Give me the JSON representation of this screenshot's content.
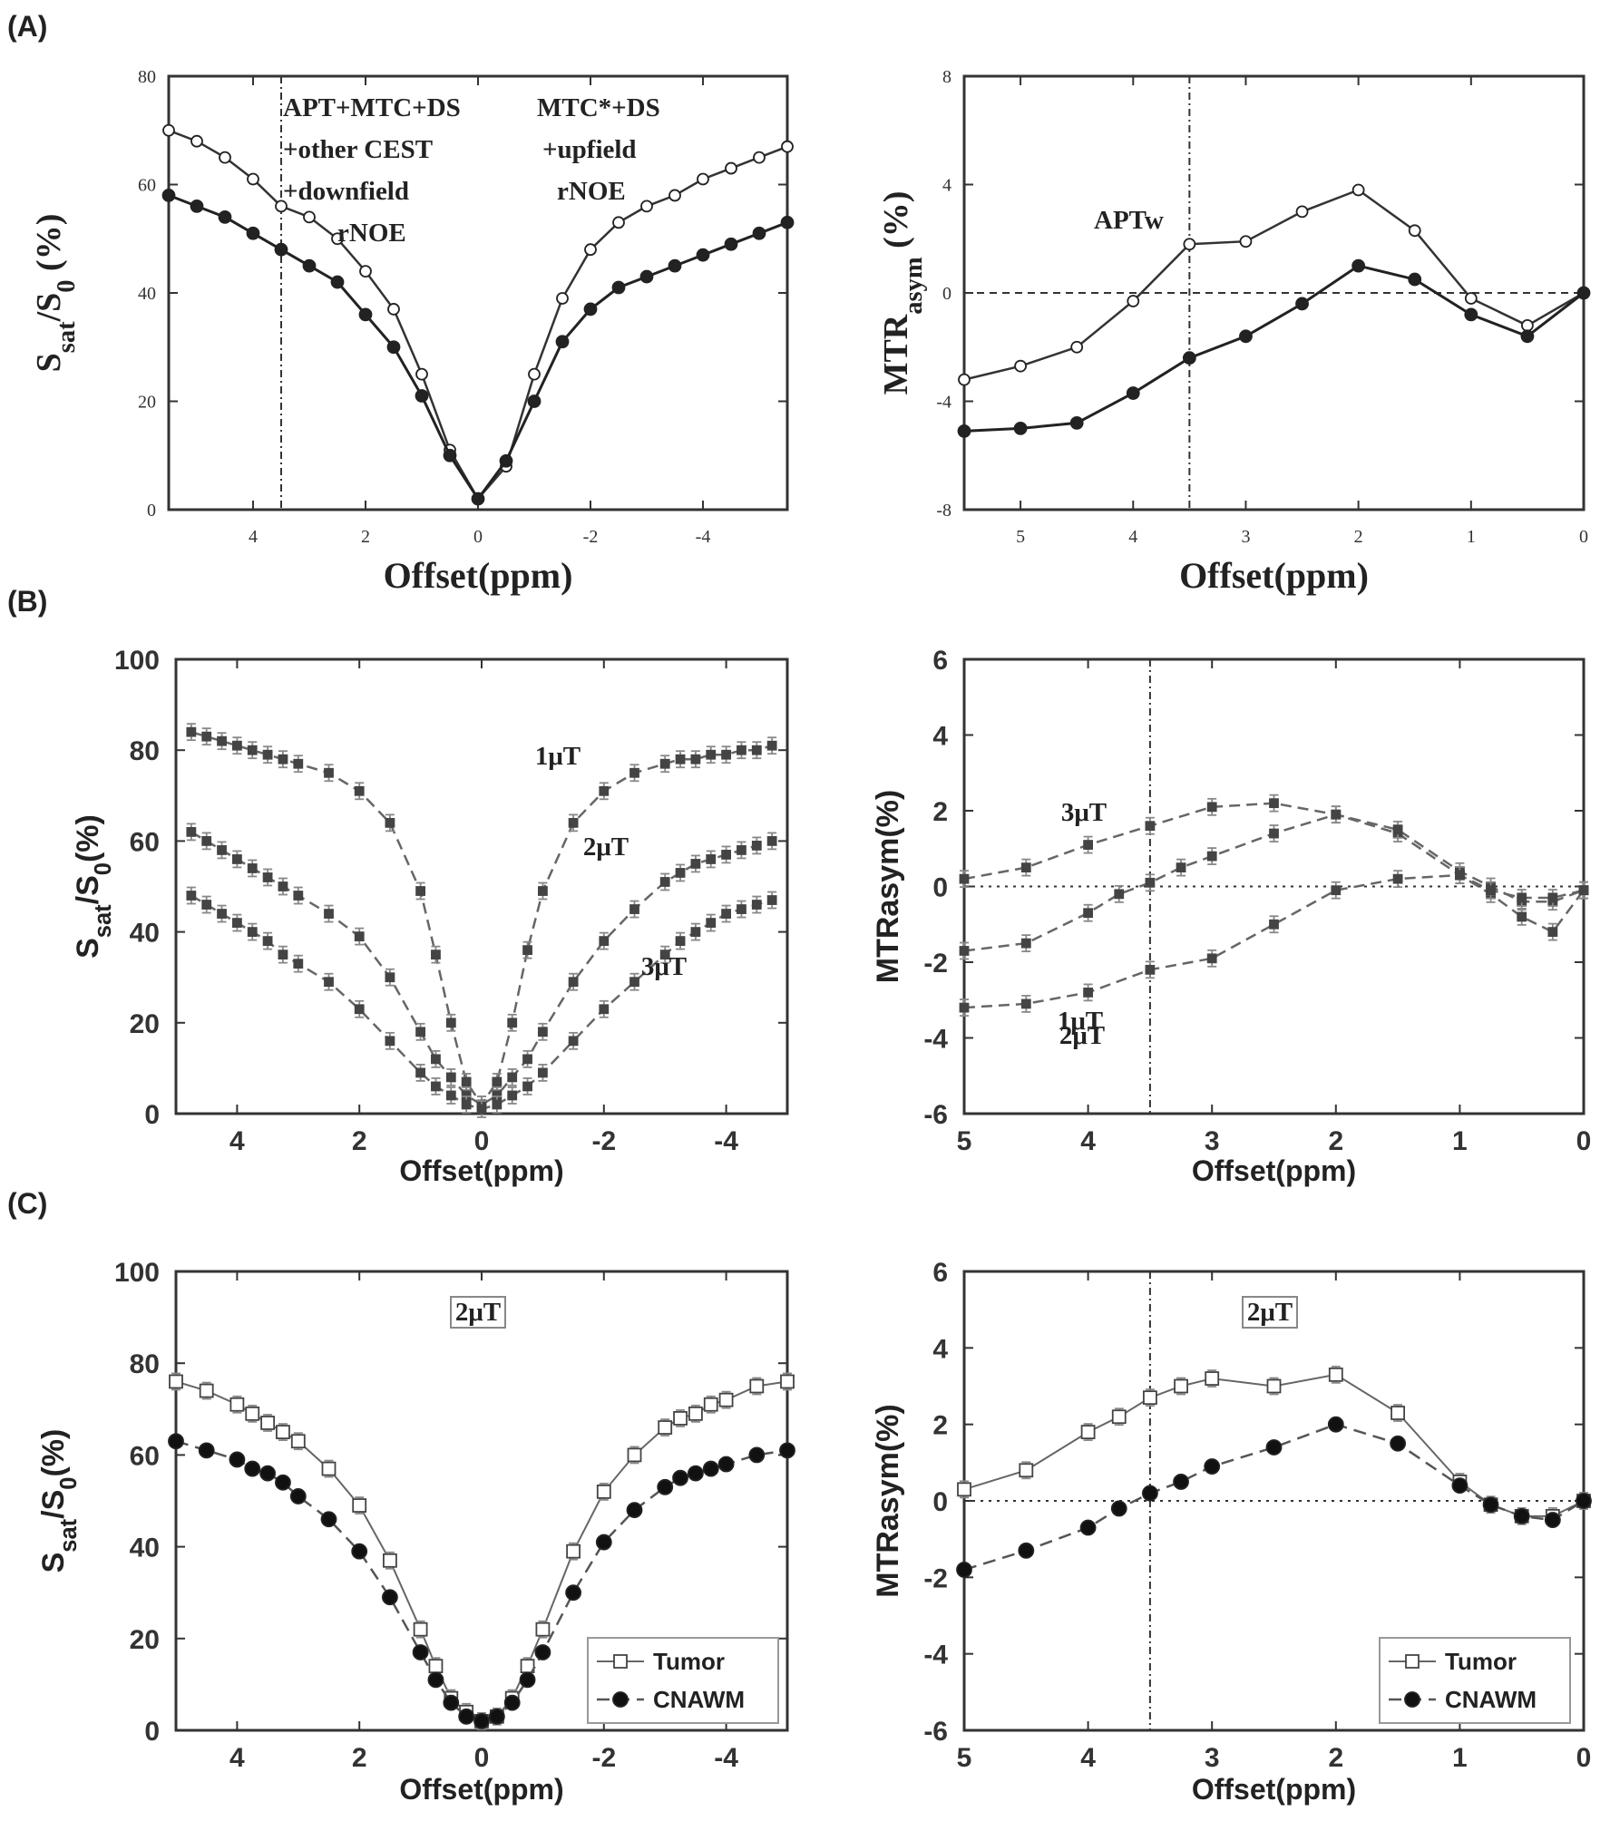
{
  "figure": {
    "panel_labels": [
      "(A)",
      "(B)",
      "(C)"
    ]
  },
  "chart_data": [
    {
      "id": "A-left",
      "type": "line",
      "xlabel": "Offset(ppm)",
      "ylabel": "S_sat/S_0 (%)",
      "xlim": [
        5.5,
        -5.5
      ],
      "ylim": [
        0,
        80
      ],
      "xticks": [
        4,
        2,
        0,
        -2,
        -4
      ],
      "yticks": [
        0,
        20,
        40,
        60,
        80
      ],
      "grid": false,
      "vline": 3.5,
      "annotations": [
        {
          "lines": [
            "APT+MTC+DS",
            "+other CEST",
            "+downfield",
            "rNOE"
          ],
          "x": 3.5,
          "y": 77
        },
        {
          "lines": [
            "MTC*+DS",
            "+upfield",
            "rNOE"
          ],
          "x": -1.2,
          "y": 77
        }
      ],
      "series": [
        {
          "marker": "open-circle",
          "x": [
            5.5,
            5.0,
            4.5,
            4.0,
            3.5,
            3.0,
            2.5,
            2.0,
            1.5,
            1.0,
            0.5,
            0.0,
            -0.5,
            -1.0,
            -1.5,
            -2.0,
            -2.5,
            -3.0,
            -3.5,
            -4.0,
            -4.5,
            -5.0,
            -5.5
          ],
          "values": [
            70,
            68,
            65,
            61,
            56,
            54,
            50,
            44,
            37,
            25,
            11,
            2,
            8,
            25,
            39,
            48,
            53,
            56,
            58,
            61,
            63,
            65,
            67
          ]
        },
        {
          "marker": "filled-circle",
          "x": [
            5.5,
            5.0,
            4.5,
            4.0,
            3.5,
            3.0,
            2.5,
            2.0,
            1.5,
            1.0,
            0.5,
            0.0,
            -0.5,
            -1.0,
            -1.5,
            -2.0,
            -2.5,
            -3.0,
            -3.5,
            -4.0,
            -4.5,
            -5.0,
            -5.5
          ],
          "values": [
            58,
            56,
            54,
            51,
            48,
            45,
            42,
            36,
            30,
            21,
            10,
            2,
            9,
            20,
            31,
            37,
            41,
            43,
            45,
            47,
            49,
            51,
            53
          ]
        }
      ]
    },
    {
      "id": "A-right",
      "type": "line",
      "xlabel": "Offset(ppm)",
      "ylabel": "MTR_asym (%)",
      "xlim": [
        5.5,
        0
      ],
      "ylim": [
        -8,
        8
      ],
      "xticks": [
        5,
        4,
        3,
        2,
        1,
        0
      ],
      "yticks": [
        -8,
        -4,
        0,
        4,
        8
      ],
      "grid": false,
      "vline": 3.5,
      "hline": 0,
      "annotations": [
        {
          "lines": [
            "APTw"
          ],
          "x": 4.0,
          "y": 2.4
        }
      ],
      "series": [
        {
          "marker": "open-circle",
          "x": [
            5.5,
            5.0,
            4.5,
            4.0,
            3.5,
            3.0,
            2.5,
            2.0,
            1.5,
            1.0,
            0.5,
            0.0
          ],
          "values": [
            -3.2,
            -2.7,
            -2.0,
            -0.3,
            1.8,
            1.9,
            3.0,
            3.8,
            2.3,
            -0.2,
            -1.2,
            0.0
          ]
        },
        {
          "marker": "filled-circle",
          "x": [
            5.5,
            5.0,
            4.5,
            4.0,
            3.5,
            3.0,
            2.5,
            2.0,
            1.5,
            1.0,
            0.5,
            0.0
          ],
          "values": [
            -5.1,
            -5.0,
            -4.8,
            -3.7,
            -2.4,
            -1.6,
            -0.4,
            1.0,
            0.5,
            -0.8,
            -1.6,
            0.0
          ]
        }
      ]
    },
    {
      "id": "B-left",
      "type": "line",
      "xlabel": "Offset(ppm)",
      "ylabel": "S_sat/S_0(%)",
      "xlim": [
        5,
        -5
      ],
      "ylim": [
        0,
        100
      ],
      "xticks": [
        4,
        2,
        0,
        -2,
        -4
      ],
      "yticks": [
        0,
        20,
        40,
        60,
        80,
        100
      ],
      "grid": false,
      "series": [
        {
          "name": "1μT",
          "x": [
            4.75,
            4.5,
            4.25,
            4.0,
            3.75,
            3.5,
            3.25,
            3.0,
            2.5,
            2.0,
            1.5,
            1.0,
            0.75,
            0.5,
            0.25,
            0.0,
            -0.25,
            -0.5,
            -0.75,
            -1.0,
            -1.5,
            -2.0,
            -2.5,
            -3.0,
            -3.25,
            -3.5,
            -3.75,
            -4.0,
            -4.25,
            -4.5,
            -4.75
          ],
          "values": [
            84,
            83,
            82,
            81,
            80,
            79,
            78,
            77,
            75,
            71,
            64,
            49,
            35,
            20,
            7,
            2,
            7,
            20,
            36,
            49,
            64,
            71,
            75,
            77,
            78,
            78,
            79,
            79,
            80,
            80,
            81
          ]
        },
        {
          "name": "2μT",
          "x": [
            4.75,
            4.5,
            4.25,
            4.0,
            3.75,
            3.5,
            3.25,
            3.0,
            2.5,
            2.0,
            1.5,
            1.0,
            0.75,
            0.5,
            0.25,
            0.0,
            -0.25,
            -0.5,
            -0.75,
            -1.0,
            -1.5,
            -2.0,
            -2.5,
            -3.0,
            -3.25,
            -3.5,
            -3.75,
            -4.0,
            -4.25,
            -4.5,
            -4.75
          ],
          "values": [
            62,
            60,
            58,
            56,
            54,
            52,
            50,
            48,
            44,
            39,
            30,
            18,
            12,
            8,
            4,
            2,
            4,
            8,
            12,
            18,
            29,
            38,
            45,
            51,
            53,
            55,
            56,
            57,
            58,
            59,
            60
          ]
        },
        {
          "name": "3μT",
          "x": [
            4.75,
            4.5,
            4.25,
            4.0,
            3.75,
            3.5,
            3.25,
            3.0,
            2.5,
            2.0,
            1.5,
            1.0,
            0.75,
            0.5,
            0.25,
            0.0,
            -0.25,
            -0.5,
            -0.75,
            -1.0,
            -1.5,
            -2.0,
            -2.5,
            -3.0,
            -3.25,
            -3.5,
            -3.75,
            -4.0,
            -4.25,
            -4.5,
            -4.75
          ],
          "values": [
            48,
            46,
            44,
            42,
            40,
            38,
            35,
            33,
            29,
            23,
            16,
            9,
            6,
            4,
            2,
            1,
            2,
            4,
            6,
            9,
            16,
            23,
            29,
            35,
            38,
            40,
            42,
            44,
            45,
            46,
            47
          ]
        }
      ]
    },
    {
      "id": "B-right",
      "type": "line",
      "xlabel": "Offset(ppm)",
      "ylabel": "MTRasym(%)",
      "xlim": [
        5,
        0
      ],
      "ylim": [
        -6,
        6
      ],
      "xticks": [
        5,
        4,
        3,
        2,
        1,
        0
      ],
      "yticks": [
        -6,
        -4,
        -2,
        0,
        2,
        4,
        6
      ],
      "grid": false,
      "vline": 3.5,
      "hline": 0,
      "series": [
        {
          "name": "3μT",
          "x": [
            5.0,
            4.5,
            4.0,
            3.5,
            3.0,
            2.5,
            2.0,
            1.5,
            1.0,
            0.75,
            0.5,
            0.25,
            0.0
          ],
          "values": [
            0.2,
            0.5,
            1.1,
            1.6,
            2.1,
            2.2,
            1.9,
            1.4,
            0.3,
            -0.2,
            -0.8,
            -1.2,
            -0.1
          ]
        },
        {
          "name": "2μT",
          "x": [
            5.0,
            4.5,
            4.0,
            3.75,
            3.5,
            3.25,
            3.0,
            2.5,
            2.0,
            1.5,
            1.0,
            0.75,
            0.5,
            0.25,
            0.0
          ],
          "values": [
            -1.7,
            -1.5,
            -0.7,
            -0.2,
            0.1,
            0.5,
            0.8,
            1.4,
            1.9,
            1.5,
            0.4,
            0.0,
            -0.4,
            -0.4,
            -0.1
          ]
        },
        {
          "name": "1μT",
          "x": [
            5.0,
            4.5,
            4.0,
            3.5,
            3.0,
            2.5,
            2.0,
            1.5,
            1.0,
            0.75,
            0.5,
            0.25,
            0.0
          ],
          "values": [
            -3.2,
            -3.1,
            -2.8,
            -2.2,
            -1.9,
            -1.0,
            -0.1,
            0.2,
            0.3,
            -0.1,
            -0.3,
            -0.3,
            -0.1
          ]
        }
      ]
    },
    {
      "id": "C-left",
      "type": "line",
      "xlabel": "Offset(ppm)",
      "ylabel": "S_sat/S_0(%)",
      "xlim": [
        5,
        -5
      ],
      "ylim": [
        0,
        100
      ],
      "xticks": [
        4,
        2,
        0,
        -2,
        -4
      ],
      "yticks": [
        0,
        20,
        40,
        60,
        80,
        100
      ],
      "grid": false,
      "annotations": [
        {
          "lines": [
            "2μT"
          ],
          "x": 0,
          "y": 91
        }
      ],
      "legend": "bottom-right",
      "series": [
        {
          "name": "Tumor",
          "x": [
            5.0,
            4.5,
            4.0,
            3.75,
            3.5,
            3.25,
            3.0,
            2.5,
            2.0,
            1.5,
            1.0,
            0.75,
            0.5,
            0.25,
            0.0,
            -0.25,
            -0.5,
            -0.75,
            -1.0,
            -1.5,
            -2.0,
            -2.5,
            -3.0,
            -3.25,
            -3.5,
            -3.75,
            -4.0,
            -4.5,
            -5.0
          ],
          "values": [
            76,
            74,
            71,
            69,
            67,
            65,
            63,
            57,
            49,
            37,
            22,
            14,
            7,
            4,
            2,
            3,
            7,
            14,
            22,
            39,
            52,
            60,
            66,
            68,
            69,
            71,
            72,
            75,
            76
          ]
        },
        {
          "name": "CNAWM",
          "x": [
            5.0,
            4.5,
            4.0,
            3.75,
            3.5,
            3.25,
            3.0,
            2.5,
            2.0,
            1.5,
            1.0,
            0.75,
            0.5,
            0.25,
            0.0,
            -0.25,
            -0.5,
            -0.75,
            -1.0,
            -1.5,
            -2.0,
            -2.5,
            -3.0,
            -3.25,
            -3.5,
            -3.75,
            -4.0,
            -4.5,
            -5.0
          ],
          "values": [
            63,
            61,
            59,
            57,
            56,
            54,
            51,
            46,
            39,
            29,
            17,
            11,
            6,
            3,
            2,
            3,
            6,
            11,
            17,
            30,
            41,
            48,
            53,
            55,
            56,
            57,
            58,
            60,
            61
          ]
        }
      ]
    },
    {
      "id": "C-right",
      "type": "line",
      "xlabel": "Offset(ppm)",
      "ylabel": "MTRasym(%)",
      "xlim": [
        5,
        0
      ],
      "ylim": [
        -6,
        6
      ],
      "xticks": [
        5,
        4,
        3,
        2,
        1,
        0
      ],
      "yticks": [
        -6,
        -4,
        -2,
        0,
        2,
        4,
        6
      ],
      "grid": false,
      "vline": 3.5,
      "hline": 0,
      "annotations": [
        {
          "lines": [
            "2μT"
          ],
          "x": 2.4,
          "y": 5.1
        }
      ],
      "legend": "bottom-right",
      "series": [
        {
          "name": "Tumor",
          "x": [
            5.0,
            4.5,
            4.0,
            3.75,
            3.5,
            3.25,
            3.0,
            2.5,
            2.0,
            1.5,
            1.0,
            0.75,
            0.5,
            0.25,
            0.0
          ],
          "values": [
            0.3,
            0.8,
            1.8,
            2.2,
            2.7,
            3.0,
            3.2,
            3.0,
            3.3,
            2.3,
            0.5,
            -0.1,
            -0.4,
            -0.4,
            0.0
          ]
        },
        {
          "name": "CNAWM",
          "x": [
            5.0,
            4.5,
            4.0,
            3.75,
            3.5,
            3.25,
            3.0,
            2.5,
            2.0,
            1.5,
            1.0,
            0.75,
            0.5,
            0.25,
            0.0
          ],
          "values": [
            -1.8,
            -1.3,
            -0.7,
            -0.2,
            0.2,
            0.5,
            0.9,
            1.4,
            2.0,
            1.5,
            0.4,
            -0.1,
            -0.4,
            -0.5,
            0.0
          ]
        }
      ]
    }
  ]
}
